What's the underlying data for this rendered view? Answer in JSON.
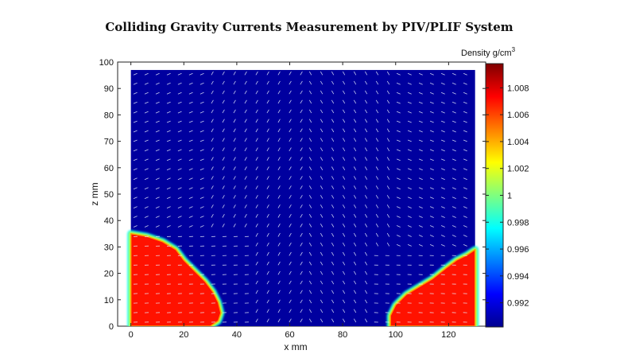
{
  "chart_data": {
    "type": "heatmap",
    "title": "Colliding Gravity Currents Measurement by PIV/PLIF System",
    "xlabel": "x mm",
    "ylabel": "z mm",
    "xlim": [
      -5,
      134
    ],
    "ylim": [
      0,
      100
    ],
    "x_ticks": [
      0,
      20,
      40,
      60,
      80,
      100,
      120
    ],
    "y_ticks": [
      0,
      10,
      20,
      30,
      40,
      50,
      60,
      70,
      80,
      90,
      100
    ],
    "field_extent": {
      "x": [
        0,
        130
      ],
      "z": [
        0,
        97
      ]
    },
    "colorbar": {
      "label_base": "Density g/cm",
      "label_exp": "3",
      "range": [
        0.9902,
        1.0098
      ],
      "ticks": [
        "0.992",
        "0.994",
        "0.996",
        "0.998",
        "1",
        "1.002",
        "1.004",
        "1.006",
        "1.008"
      ],
      "colormap": "jet"
    },
    "dense_regions": [
      {
        "name": "left current",
        "density": 1.007,
        "boundary": [
          [
            0,
            35
          ],
          [
            6,
            34
          ],
          [
            12,
            32
          ],
          [
            17,
            29
          ],
          [
            20,
            25
          ],
          [
            24,
            21
          ],
          [
            28,
            17
          ],
          [
            31,
            13
          ],
          [
            33,
            9
          ],
          [
            34,
            5
          ],
          [
            33,
            2
          ],
          [
            30,
            0
          ],
          [
            0,
            0
          ]
        ]
      },
      {
        "name": "right current",
        "density": 1.007,
        "boundary": [
          [
            130,
            29
          ],
          [
            127,
            27
          ],
          [
            123,
            25
          ],
          [
            119,
            22
          ],
          [
            114,
            18
          ],
          [
            109,
            15
          ],
          [
            104,
            12
          ],
          [
            100,
            8
          ],
          [
            98,
            4
          ],
          [
            98,
            0
          ],
          [
            130,
            0
          ]
        ]
      }
    ],
    "ambient_density": 0.9908,
    "velocity_vectors": true,
    "grid": false
  }
}
